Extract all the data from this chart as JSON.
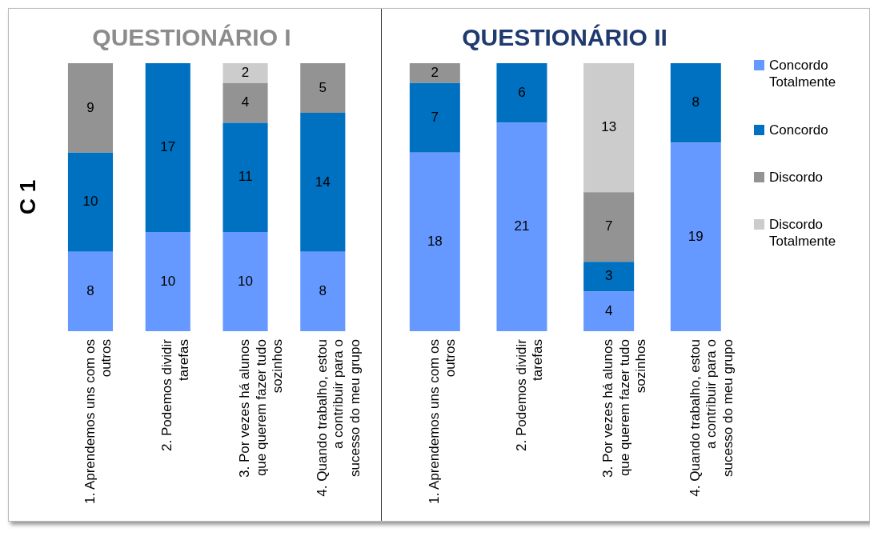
{
  "chart_data": [
    {
      "type": "bar",
      "title": "QUESTIONÁRIO I",
      "ylabel": "C 1",
      "stacked": true,
      "data_labels": true,
      "legend": false,
      "grid": false,
      "categories": [
        "1. Aprendemos uns com os outros",
        "2. Podemos dividir tarefas",
        "3. Por vezes há alunos que querem fazer tudo sozinhos",
        "4. Quando trabalho, estou a contribuir para o sucesso do meu grupo"
      ],
      "series": [
        {
          "color": "#6699ff",
          "values": [
            8,
            10,
            10,
            8
          ]
        },
        {
          "color": "#0070c0",
          "values": [
            10,
            17,
            11,
            14
          ]
        },
        {
          "color": "#939393",
          "values": [
            9,
            null,
            4,
            5
          ]
        },
        {
          "color": "#cccccc",
          "values": [
            null,
            null,
            2,
            null
          ]
        }
      ]
    },
    {
      "type": "bar",
      "title": "QUESTIONÁRIO II",
      "stacked": true,
      "data_labels": true,
      "legend": "right",
      "grid": false,
      "categories": [
        "1. Aprendemos uns com os outros",
        "2. Podemos dividir tarefas",
        "3. Por vezes há alunos que querem fazer tudo sozinhos",
        "4. Quando trabalho, estou a contribuir para o sucesso do meu grupo"
      ],
      "series": [
        {
          "name": "Concordo Totalmente",
          "color": "#6699ff",
          "values": [
            18,
            21,
            4,
            19
          ]
        },
        {
          "name": "Concordo",
          "color": "#0070c0",
          "values": [
            7,
            6,
            3,
            8
          ]
        },
        {
          "name": "Discordo",
          "color": "#939393",
          "values": [
            2,
            null,
            7,
            null
          ]
        },
        {
          "name": "Discordo Totalmente",
          "color": "#cccccc",
          "values": [
            null,
            null,
            13,
            null
          ]
        }
      ]
    }
  ]
}
